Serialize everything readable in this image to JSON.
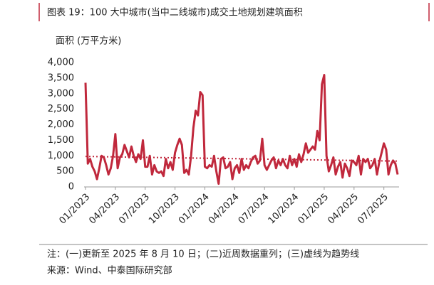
{
  "title": "图表 19：100 大中城市(当中二线城市)成交土地规划建筑面积",
  "notes": [
    "注：(一)更新至 2025 年 8 月 10 日；(二)近周数据重列；(三)虚线为趋势线",
    "来源：Wind、中泰国际研究部"
  ],
  "chart_data": {
    "type": "line",
    "y_label": "面积 (万平方米)",
    "categories": [
      "01/2023",
      null,
      null,
      null,
      null,
      null,
      null,
      null,
      null,
      null,
      null,
      null,
      null,
      "04/2023",
      null,
      null,
      null,
      null,
      null,
      null,
      null,
      null,
      null,
      null,
      null,
      null,
      "07/2023",
      null,
      null,
      null,
      null,
      null,
      null,
      null,
      null,
      null,
      null,
      null,
      null,
      "10/2023",
      null,
      null,
      null,
      null,
      null,
      null,
      null,
      null,
      null,
      null,
      null,
      null,
      "01/2024",
      null,
      null,
      null,
      null,
      null,
      null,
      null,
      null,
      null,
      null,
      null,
      null,
      "04/2024",
      null,
      null,
      null,
      null,
      null,
      null,
      null,
      null,
      null,
      null,
      null,
      null,
      "07/2024",
      null,
      null,
      null,
      null,
      null,
      null,
      null,
      null,
      null,
      null,
      null,
      null,
      "10/2024",
      null,
      null,
      null,
      null,
      null,
      null,
      null,
      null,
      null,
      null,
      null,
      null,
      "01/2025",
      null,
      null,
      null,
      null,
      null,
      null,
      null,
      null,
      null,
      null,
      null,
      null,
      "04/2025",
      null,
      null,
      null,
      null,
      null,
      null,
      null,
      null,
      null,
      null,
      null,
      null,
      "07/2025",
      null,
      null,
      null,
      null,
      null,
      null
    ],
    "series": [
      {
        "color": "#c0283c",
        "values": [
          3350,
          750,
          900,
          650,
          500,
          250,
          600,
          1000,
          950,
          700,
          400,
          600,
          1000,
          1700,
          600,
          950,
          1050,
          1350,
          1150,
          950,
          1300,
          1000,
          800,
          1050,
          900,
          1500,
          650,
          650,
          1000,
          400,
          700,
          500,
          450,
          500,
          350,
          900,
          600,
          800,
          550,
          1100,
          1350,
          1550,
          1350,
          450,
          550,
          400,
          1000,
          1900,
          2450,
          2300,
          3050,
          2950,
          650,
          600,
          700,
          650,
          1000,
          500,
          100,
          900,
          950,
          600,
          650,
          800,
          250,
          600,
          700,
          450,
          900,
          550,
          700,
          600,
          800,
          950,
          1000,
          750,
          850,
          1550,
          700,
          550,
          700,
          850,
          950,
          600,
          850,
          700,
          900,
          700,
          600,
          1000,
          700,
          900,
          650,
          1050,
          800,
          1050,
          1400,
          1100,
          1200,
          1300,
          1200,
          1800,
          1500,
          3300,
          3600,
          1000,
          500,
          700,
          950,
          400,
          650,
          800,
          300,
          750,
          600,
          350,
          850,
          800,
          700,
          1000,
          400,
          900,
          800,
          900,
          600,
          700,
          900,
          400,
          800,
          1100,
          1400,
          1200,
          400,
          700,
          850,
          750,
          400
        ]
      }
    ],
    "trend_line": {
      "color": "#c0283c",
      "style": "dotted",
      "values": [
        980,
        830
      ]
    },
    "ylim": [
      0,
      4000
    ],
    "yticks": [
      0,
      500,
      {
        "value": 1000,
        "label": "1,000"
      },
      {
        "value": 1500,
        "label": "1,500"
      },
      {
        "value": 2000,
        "label": "2,000"
      },
      {
        "value": 2500,
        "label": "2,500"
      },
      {
        "value": 3000,
        "label": "3,000"
      },
      {
        "value": 3500,
        "label": "3,500"
      },
      {
        "value": 4000,
        "label": "4,000"
      }
    ]
  }
}
